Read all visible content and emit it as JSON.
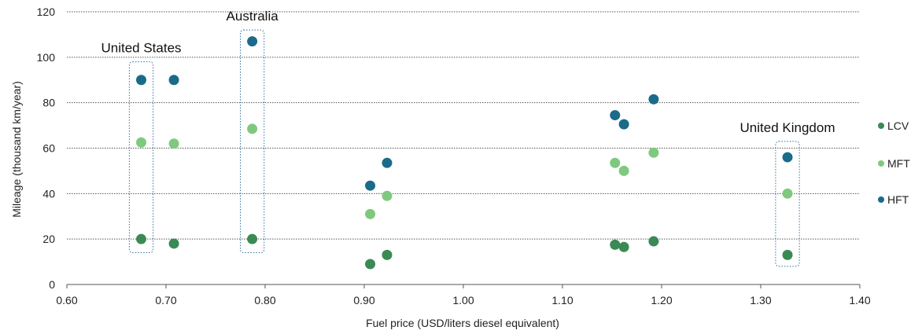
{
  "chart_data": {
    "type": "scatter",
    "title": "",
    "xlabel": "Fuel price (USD/liters diesel equivalent)",
    "ylabel": "Mileage (thousand km/year)",
    "xlim": [
      0.6,
      1.4
    ],
    "ylim": [
      0,
      120
    ],
    "x_ticks": [
      "0.60",
      "0.70",
      "0.80",
      "0.90",
      "1.00",
      "1.10",
      "1.20",
      "1.30",
      "1.40"
    ],
    "y_ticks": [
      "0",
      "20",
      "40",
      "60",
      "80",
      "100",
      "120"
    ],
    "grid": "horizontal dotted",
    "legend_position": "right",
    "series": [
      {
        "name": "LCV",
        "color": "#3b8a55",
        "points": [
          {
            "x": 0.675,
            "y": 20
          },
          {
            "x": 0.708,
            "y": 18
          },
          {
            "x": 0.787,
            "y": 20
          },
          {
            "x": 0.906,
            "y": 9
          },
          {
            "x": 0.923,
            "y": 13
          },
          {
            "x": 1.153,
            "y": 17.5
          },
          {
            "x": 1.162,
            "y": 16.5
          },
          {
            "x": 1.192,
            "y": 19
          },
          {
            "x": 1.327,
            "y": 13
          }
        ]
      },
      {
        "name": "MFT",
        "color": "#7fc97f",
        "points": [
          {
            "x": 0.675,
            "y": 62.5
          },
          {
            "x": 0.708,
            "y": 62
          },
          {
            "x": 0.787,
            "y": 68.5
          },
          {
            "x": 0.906,
            "y": 31
          },
          {
            "x": 0.923,
            "y": 39
          },
          {
            "x": 1.153,
            "y": 53.5
          },
          {
            "x": 1.162,
            "y": 50
          },
          {
            "x": 1.192,
            "y": 58
          },
          {
            "x": 1.327,
            "y": 40
          }
        ]
      },
      {
        "name": "HFT",
        "color": "#1a6b8a",
        "points": [
          {
            "x": 0.675,
            "y": 90
          },
          {
            "x": 0.708,
            "y": 90
          },
          {
            "x": 0.787,
            "y": 107
          },
          {
            "x": 0.906,
            "y": 43.5
          },
          {
            "x": 0.923,
            "y": 53.5
          },
          {
            "x": 1.153,
            "y": 74.5
          },
          {
            "x": 1.162,
            "y": 70.5
          },
          {
            "x": 1.192,
            "y": 81.5
          },
          {
            "x": 1.327,
            "y": 56
          }
        ]
      }
    ],
    "annotations": [
      {
        "label": "United States",
        "x_min": 0.663,
        "x_max": 0.687,
        "y_min": 14,
        "y_max": 98
      },
      {
        "label": "Australia",
        "x_min": 0.775,
        "x_max": 0.799,
        "y_min": 14,
        "y_max": 112
      },
      {
        "label": "United Kingdom",
        "x_min": 1.315,
        "x_max": 1.339,
        "y_min": 8,
        "y_max": 63
      }
    ]
  }
}
